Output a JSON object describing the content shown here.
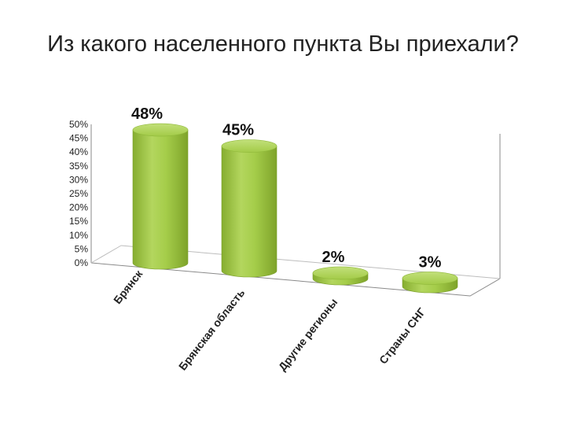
{
  "chart_data": {
    "type": "bar",
    "style": "3d-cylinder",
    "title": "Из какого населенного пункта Вы приехали?",
    "categories": [
      "Брянск",
      "Брянская область",
      "Другие регионы",
      "Страны СНГ"
    ],
    "values": [
      48,
      45,
      2,
      3
    ],
    "data_labels": [
      "48%",
      "45%",
      "2%",
      "3%"
    ],
    "ylim": [
      0,
      50
    ],
    "yticks": [
      "0%",
      "5%",
      "10%",
      "15%",
      "20%",
      "25%",
      "30%",
      "35%",
      "40%",
      "45%",
      "50%"
    ],
    "bar_color": "#9bc53d",
    "grid": false
  }
}
